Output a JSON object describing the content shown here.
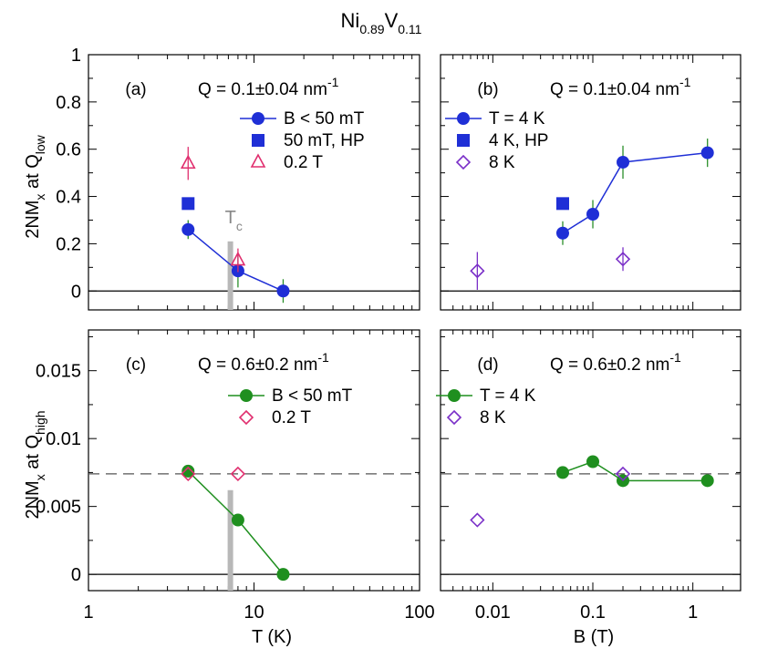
{
  "figure_title": {
    "main1": "Ni",
    "sub1": "0.89",
    "main2": "V",
    "sub2": "0.11"
  },
  "colors": {
    "blue": "#1f2fd6",
    "pink": "#e02e6e",
    "purple": "#7a2fc8",
    "green": "#1f8f1f",
    "errorbar": "#2a8f2a",
    "gray": "#b8b8b8",
    "dash": "#555555"
  },
  "chart_data": [
    {
      "id": "a",
      "type": "line",
      "panel_label": "(a)",
      "q_label": {
        "main": "Q = 0.1±0.04 nm",
        "sup": "-1"
      },
      "xscale": "log",
      "xlim": [
        1,
        100
      ],
      "ylim": [
        -0.08,
        1.0
      ],
      "xticks": [
        "1",
        "10",
        "100"
      ],
      "yticks": [
        {
          "v": 0,
          "label": "0"
        },
        {
          "v": 0.2,
          "label": "0.2"
        },
        {
          "v": 0.4,
          "label": "0.4"
        },
        {
          "v": 0.6,
          "label": "0.6"
        },
        {
          "v": 0.8,
          "label": "0.8"
        },
        {
          "v": 1,
          "label": "1"
        }
      ],
      "tc_label": {
        "main": "T",
        "sub": "c"
      },
      "tc_x": 7.2,
      "tc_ymax": 0.21,
      "series": [
        {
          "name": "B < 50 mT",
          "marker": "circle",
          "color": "blue",
          "line": true,
          "x": [
            4,
            8,
            15
          ],
          "y": [
            0.26,
            0.085,
            0.0
          ],
          "err": [
            0.04,
            0.07,
            0.05
          ]
        },
        {
          "name": "50 mT, HP",
          "marker": "square",
          "color": "blue",
          "line": false,
          "x": [
            4
          ],
          "y": [
            0.37
          ],
          "err": [
            0
          ]
        },
        {
          "name": "0.2 T",
          "marker": "triangle",
          "color": "pink",
          "line": false,
          "x": [
            4,
            8
          ],
          "y": [
            0.54,
            0.13
          ],
          "err": [
            0.07,
            0.05
          ]
        }
      ]
    },
    {
      "id": "b",
      "type": "line",
      "panel_label": "(b)",
      "q_label": {
        "main": "Q = 0.1±0.04 nm",
        "sup": "-1"
      },
      "xscale": "log",
      "xlim": [
        0.003,
        3
      ],
      "ylim": [
        -0.08,
        1.0
      ],
      "xticks": [
        "0.01",
        "0.1",
        "1"
      ],
      "series": [
        {
          "name": "T = 4 K",
          "marker": "circle",
          "color": "blue",
          "line": true,
          "x": [
            0.05,
            0.1,
            0.2,
            1.4
          ],
          "y": [
            0.245,
            0.325,
            0.545,
            0.585
          ],
          "err": [
            0.05,
            0.06,
            0.07,
            0.06
          ]
        },
        {
          "name": "4 K, HP",
          "marker": "square",
          "color": "blue",
          "line": false,
          "x": [
            0.05
          ],
          "y": [
            0.37
          ],
          "err": [
            0
          ]
        },
        {
          "name": "8 K",
          "marker": "diamond",
          "color": "purple",
          "line": false,
          "x": [
            0.007,
            0.2
          ],
          "y": [
            0.085,
            0.135
          ],
          "err": [
            0.08,
            0.05
          ]
        }
      ]
    },
    {
      "id": "c",
      "type": "line",
      "panel_label": "(c)",
      "q_label": {
        "main": "Q = 0.6±0.2 nm",
        "sup": "-1"
      },
      "xscale": "log",
      "xlim": [
        1,
        100
      ],
      "ylim": [
        -0.0012,
        0.018
      ],
      "xticks": [
        "1",
        "10",
        "100"
      ],
      "yticks": [
        {
          "v": 0,
          "label": "0"
        },
        {
          "v": 0.005,
          "label": "0.005"
        },
        {
          "v": 0.01,
          "label": "0.01"
        },
        {
          "v": 0.015,
          "label": "0.015"
        }
      ],
      "dashed_y": 0.0074,
      "tc_x": 7.2,
      "tc_ymax": 0.0062,
      "series": [
        {
          "name": "B < 50 mT",
          "marker": "circle",
          "color": "green",
          "line": true,
          "x": [
            4,
            8,
            15
          ],
          "y": [
            0.0076,
            0.004,
            0.0
          ],
          "err": [
            0,
            0,
            0
          ]
        },
        {
          "name": "0.2 T",
          "marker": "diamond",
          "color": "pink",
          "line": false,
          "x": [
            4,
            8
          ],
          "y": [
            0.0074,
            0.0074
          ],
          "err": [
            0,
            0
          ]
        }
      ]
    },
    {
      "id": "d",
      "type": "line",
      "panel_label": "(d)",
      "q_label": {
        "main": "Q = 0.6±0.2 nm",
        "sup": "-1"
      },
      "xscale": "log",
      "xlim": [
        0.003,
        3
      ],
      "ylim": [
        -0.0012,
        0.018
      ],
      "xticks": [
        "0.01",
        "0.1",
        "1"
      ],
      "dashed_y": 0.0074,
      "series": [
        {
          "name": "T = 4 K",
          "marker": "circle",
          "color": "green",
          "line": true,
          "x": [
            0.05,
            0.1,
            0.2,
            1.4
          ],
          "y": [
            0.0075,
            0.0083,
            0.0069,
            0.0069
          ],
          "err": [
            0,
            0,
            0,
            0
          ]
        },
        {
          "name": "8 K",
          "marker": "diamond",
          "color": "purple",
          "line": false,
          "x": [
            0.007,
            0.2
          ],
          "y": [
            0.004,
            0.0074
          ],
          "err": [
            0,
            0
          ]
        }
      ]
    }
  ],
  "axis_labels": {
    "y_top": {
      "main": "2NM",
      "sub1": "x",
      "mid": " at Q",
      "sub2": "low"
    },
    "y_bottom": {
      "main": "2NM",
      "sub1": "x",
      "mid": " at Q",
      "sub2": "high"
    },
    "x_left": "T (K)",
    "x_right": "B (T)"
  }
}
